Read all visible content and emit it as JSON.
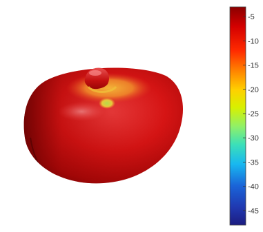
{
  "chart_data": {
    "type": "heatmap",
    "subtype": "3d-radiation-pattern-surface",
    "title": "",
    "xlabel": "",
    "ylabel": "",
    "colormap": "jet",
    "colorbar": {
      "range": [
        -48,
        -3
      ],
      "ticks": [
        -5,
        -10,
        -15,
        -20,
        -25,
        -30,
        -35,
        -40,
        -45
      ],
      "tick_labels": [
        "-5",
        "-10",
        "-15",
        "-20",
        "-25",
        "-30",
        "-35",
        "-40",
        "-45"
      ],
      "placement": "right"
    },
    "surface": {
      "shape": "flattened torus with a small central lobe on top",
      "dominant_value": -8,
      "min_visible_value": -22,
      "max_visible_value": -4
    },
    "grid": false,
    "legend": "none"
  }
}
